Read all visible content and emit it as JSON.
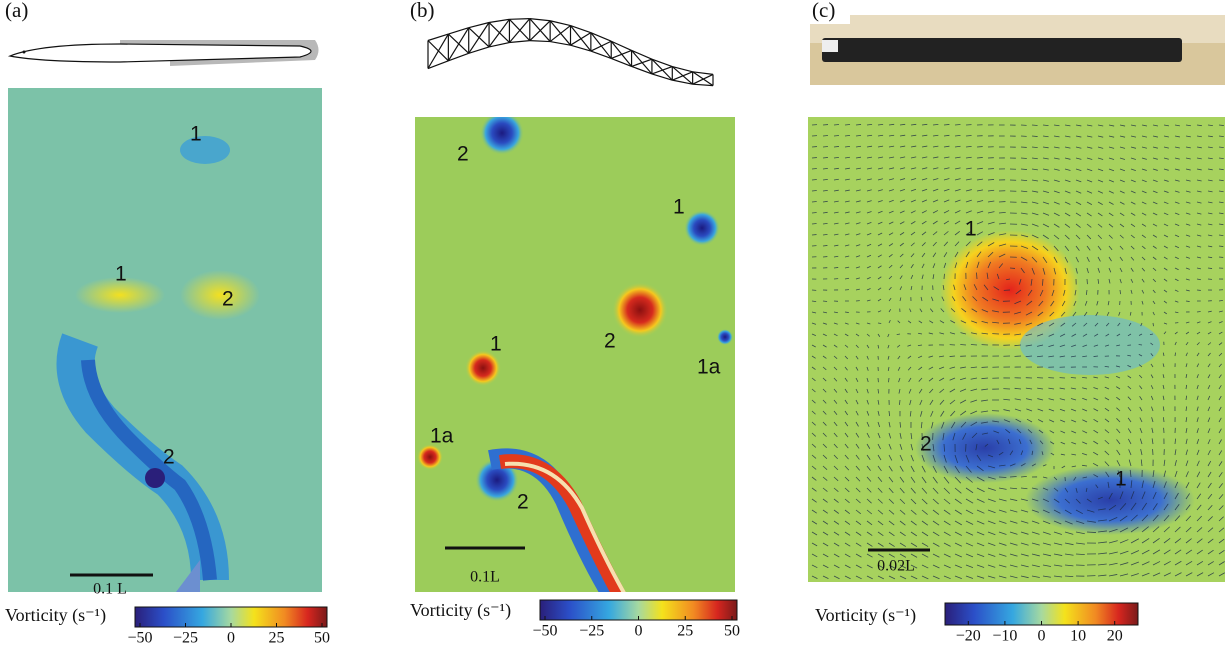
{
  "panels": [
    {
      "label": "(a)",
      "annotations": [
        "1",
        "1",
        "2",
        "2"
      ],
      "scale_bar": "0.1 L",
      "colorbar": {
        "label": "Vorticity (s⁻¹)",
        "clim": [
          -50,
          50
        ],
        "ticks": [
          {
            "value": -50,
            "label": "−50"
          },
          {
            "value": -25,
            "label": "−25"
          },
          0,
          25,
          50
        ]
      }
    },
    {
      "label": "(b)",
      "annotations": [
        "2",
        "1",
        "2",
        "1",
        "1a",
        "1a",
        "2"
      ],
      "scale_bar": "0.1L",
      "colorbar": {
        "label": "Vorticity (s⁻¹)",
        "clim": [
          -50,
          50
        ],
        "ticks": [
          {
            "value": -50,
            "label": "−50"
          },
          {
            "value": -25,
            "label": "−25"
          },
          0,
          25,
          50
        ]
      }
    },
    {
      "label": "(c)",
      "annotations": [
        "1",
        "2",
        "1"
      ],
      "scale_bar": "0.02L",
      "colorbar": {
        "label": "Vorticity (s⁻¹)",
        "clim": [
          -25,
          25
        ],
        "ticks": [
          {
            "value": -20,
            "label": "−20"
          },
          {
            "value": -10,
            "label": "−10"
          },
          0,
          10,
          20
        ]
      }
    }
  ]
}
